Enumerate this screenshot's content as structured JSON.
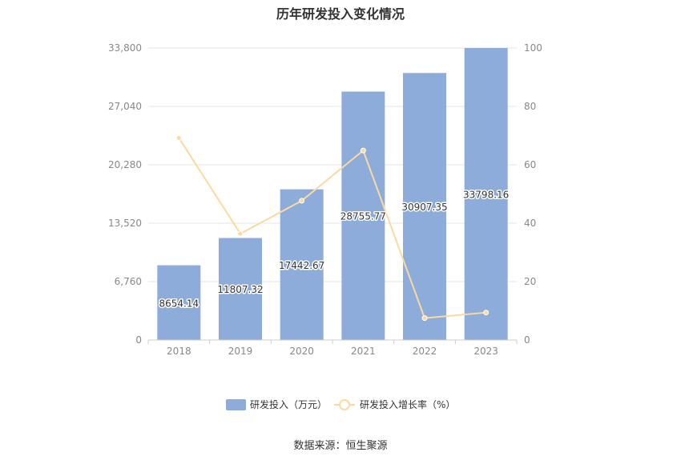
{
  "title": "历年研发投入变化情况",
  "source": "数据来源：恒生聚源",
  "chart_data": {
    "type": "bar",
    "categories": [
      "2018",
      "2019",
      "2020",
      "2021",
      "2022",
      "2023"
    ],
    "series": [
      {
        "name": "研发投入（万元）",
        "type": "bar",
        "axis": "left",
        "values": [
          8654.14,
          11807.32,
          17442.67,
          28755.77,
          30907.35,
          33798.16
        ],
        "labels": [
          "8654.14",
          "11807.32",
          "17442.67",
          "28755.77",
          "30907.35",
          "33798.16"
        ]
      },
      {
        "name": "研发投入增长率（%）",
        "type": "line",
        "axis": "right",
        "values": [
          69.2,
          36.4,
          47.7,
          64.9,
          7.5,
          9.4
        ]
      }
    ],
    "y_left": {
      "min": 0,
      "max": 33800,
      "ticks": [
        0,
        6760,
        13520,
        20280,
        27040,
        33800
      ],
      "tick_labels": [
        "0",
        "6,760",
        "13,520",
        "20,280",
        "27,040",
        "33,800"
      ]
    },
    "y_right": {
      "min": 0,
      "max": 100,
      "ticks": [
        0,
        20,
        40,
        60,
        80,
        100
      ],
      "tick_labels": [
        "0",
        "20",
        "40",
        "60",
        "80",
        "100"
      ]
    },
    "grid": true,
    "legend_position": "bottom",
    "colors": {
      "bar": "#8eacda",
      "line": "#fbd99f",
      "grid": "#e6e6e6",
      "axis_text": "#888888"
    }
  }
}
